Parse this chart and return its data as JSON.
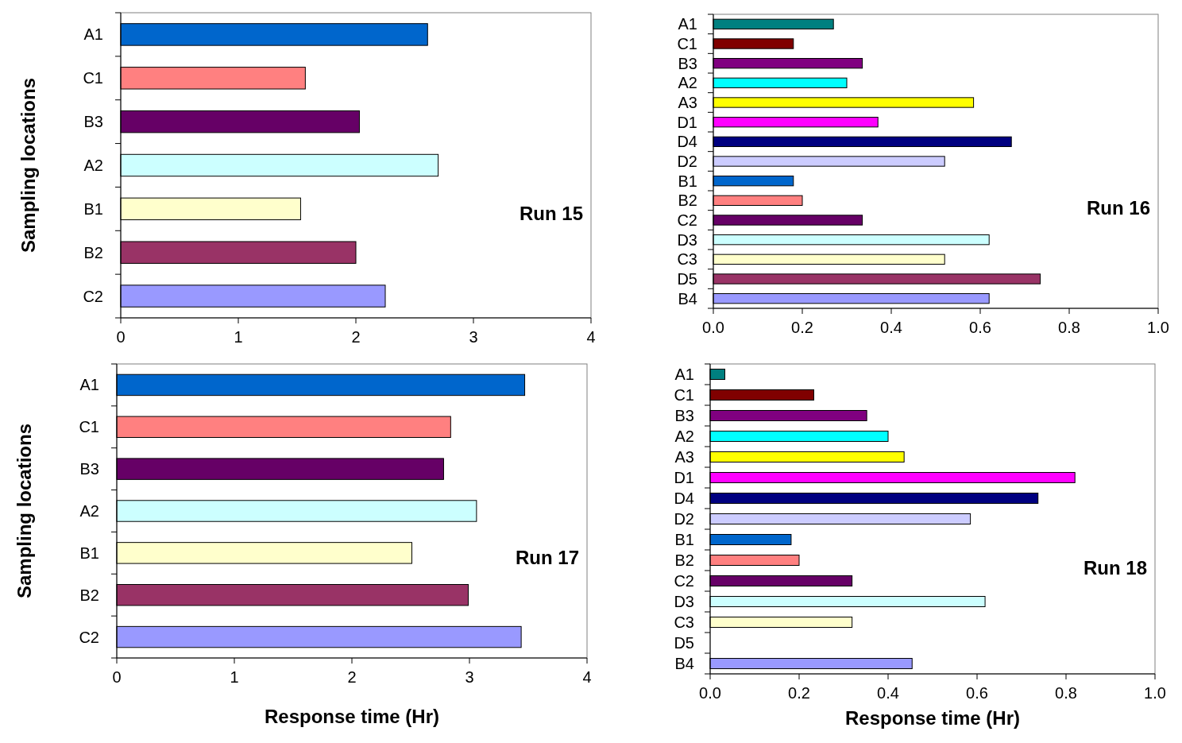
{
  "chart_data": [
    {
      "type": "bar",
      "orientation": "horizontal",
      "ylabel": "Sampling locations",
      "annotations": [
        "Run 15"
      ],
      "categories": [
        "A1",
        "C1",
        "B3",
        "A2",
        "B1",
        "B2",
        "C2"
      ],
      "values": [
        2.61,
        1.57,
        2.03,
        2.7,
        1.53,
        2.0,
        2.25
      ],
      "colors": [
        "#0066cc",
        "#ff8080",
        "#660066",
        "#ccffff",
        "#ffffcc",
        "#993366",
        "#9999ff"
      ],
      "xlim": [
        0,
        4
      ],
      "xticks": [
        0,
        1,
        2,
        3,
        4
      ],
      "grid": false
    },
    {
      "type": "bar",
      "orientation": "horizontal",
      "annotations": [
        "Run 16"
      ],
      "categories": [
        "A1",
        "C1",
        "B3",
        "A2",
        "A3",
        "D1",
        "D4",
        "D2",
        "B1",
        "B2",
        "C2",
        "D3",
        "C3",
        "D5",
        "B4"
      ],
      "values": [
        0.27,
        0.18,
        0.335,
        0.3,
        0.585,
        0.37,
        0.67,
        0.52,
        0.18,
        0.2,
        0.335,
        0.62,
        0.52,
        0.735,
        0.62
      ],
      "colors": [
        "#008080",
        "#800000",
        "#800080",
        "#00ffff",
        "#ffff00",
        "#ff00ff",
        "#000080",
        "#ccccff",
        "#0066cc",
        "#ff8080",
        "#660066",
        "#ccffff",
        "#ffffcc",
        "#993366",
        "#9999ff"
      ],
      "xlim": [
        0,
        1
      ],
      "xticks": [
        {
          "value": 0,
          "label": "0.0"
        },
        {
          "value": 0.2,
          "label": "0.2"
        },
        {
          "value": 0.4,
          "label": "0.4"
        },
        {
          "value": 0.6,
          "label": "0.6"
        },
        {
          "value": 0.8,
          "label": "0.8"
        },
        {
          "value": 1,
          "label": "1.0"
        }
      ],
      "grid": false
    },
    {
      "type": "bar",
      "orientation": "horizontal",
      "xlabel": "Response time (Hr)",
      "ylabel": "Sampling locations",
      "annotations": [
        "Run 17"
      ],
      "categories": [
        "A1",
        "C1",
        "B3",
        "A2",
        "B1",
        "B2",
        "C2"
      ],
      "values": [
        3.47,
        2.84,
        2.78,
        3.06,
        2.51,
        2.99,
        3.44
      ],
      "colors": [
        "#0066cc",
        "#ff8080",
        "#660066",
        "#ccffff",
        "#ffffcc",
        "#993366",
        "#9999ff"
      ],
      "xlim": [
        0,
        4
      ],
      "xticks": [
        0,
        1,
        2,
        3,
        4
      ],
      "grid": false
    },
    {
      "type": "bar",
      "orientation": "horizontal",
      "xlabel": "Response time (Hr)",
      "annotations": [
        "Run 18"
      ],
      "categories": [
        "A1",
        "C1",
        "B3",
        "A2",
        "A3",
        "D1",
        "D4",
        "D2",
        "B1",
        "B2",
        "C2",
        "D3",
        "C3",
        "D5",
        "B4"
      ],
      "values": [
        0.033,
        0.233,
        0.352,
        0.4,
        0.436,
        0.82,
        0.737,
        0.585,
        0.182,
        0.2,
        0.319,
        0.618,
        0.319,
        null,
        0.454
      ],
      "colors": [
        "#008080",
        "#800000",
        "#800080",
        "#00ffff",
        "#ffff00",
        "#ff00ff",
        "#000080",
        "#ccccff",
        "#0066cc",
        "#ff8080",
        "#660066",
        "#ccffff",
        "#ffffcc",
        null,
        "#9999ff"
      ],
      "xlim": [
        0,
        1
      ],
      "xticks": [
        {
          "value": 0,
          "label": "0.0"
        },
        {
          "value": 0.2,
          "label": "0.2"
        },
        {
          "value": 0.4,
          "label": "0.4"
        },
        {
          "value": 0.6,
          "label": "0.6"
        },
        {
          "value": 0.8,
          "label": "0.8"
        },
        {
          "value": 1,
          "label": "1.0"
        }
      ],
      "grid": false
    }
  ]
}
